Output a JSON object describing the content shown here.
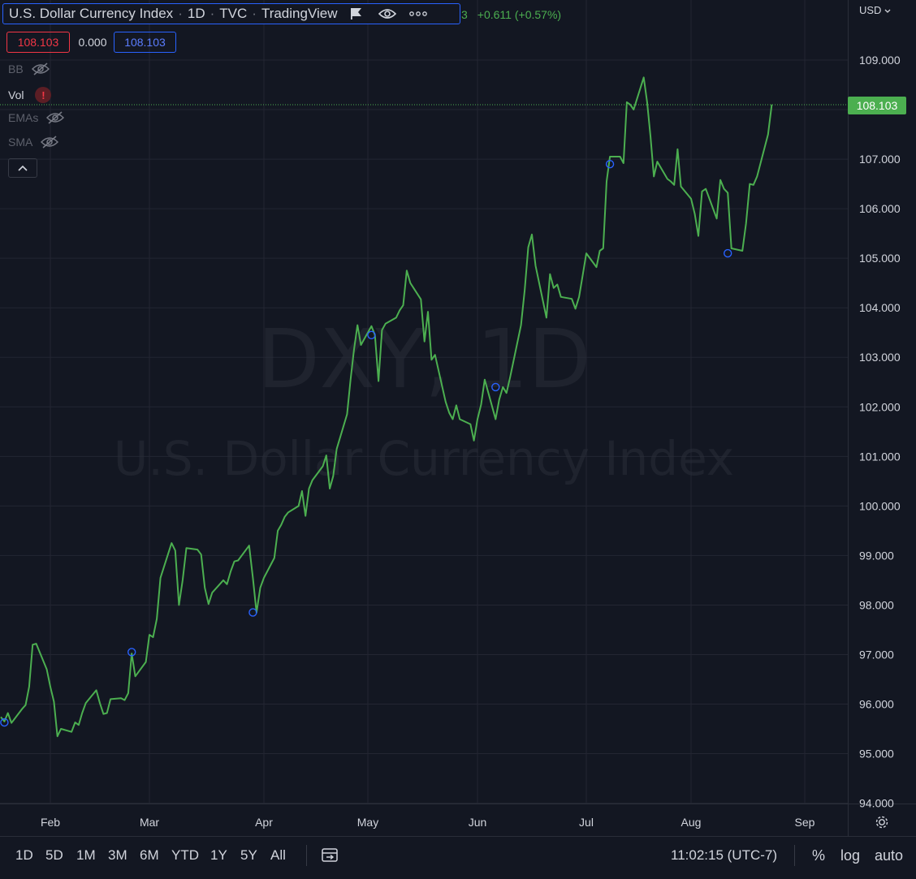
{
  "legend": {
    "symbol_title": "U.S. Dollar Currency Index",
    "interval": "1D",
    "exchange": "TVC",
    "source": "TradingView",
    "dot": "·",
    "last_fragment": "3",
    "change": "+0.611 (+0.57%)",
    "icons": [
      "flag-icon",
      "eye-icon",
      "more-icon"
    ]
  },
  "prices": {
    "bid": "108.103",
    "spread": "0.000",
    "ask": "108.103"
  },
  "indicators": [
    {
      "name": "BB",
      "state": "hidden"
    },
    {
      "name": "Vol",
      "state": "error"
    },
    {
      "name": "EMAs",
      "state": "hidden"
    },
    {
      "name": "SMA",
      "state": "hidden"
    }
  ],
  "warning_glyph": "!",
  "currency_label": "USD",
  "last_price_tag": "108.103",
  "watermark": {
    "symbol": "DXY, 1D",
    "name": "U.S. Dollar Currency Index"
  },
  "time_ranges": [
    "1D",
    "5D",
    "1M",
    "3M",
    "6M",
    "YTD",
    "1Y",
    "5Y",
    "All"
  ],
  "clock": "11:02:15 (UTC-7)",
  "scale_options": {
    "percent": "%",
    "log": "log",
    "auto": "auto"
  },
  "colors": {
    "background": "#131722",
    "line": "#4caf50",
    "marker": "#2962ff",
    "accent": "#2962ff",
    "down": "#f23645"
  },
  "chart_data": {
    "type": "line",
    "title": "U.S. Dollar Currency Index",
    "y_axis_ticks": [
      "109.000",
      "108.000",
      "107.000",
      "106.000",
      "105.000",
      "104.000",
      "103.000",
      "102.000",
      "101.000",
      "100.000",
      "99.000",
      "98.000",
      "97.000",
      "96.000",
      "95.000",
      "94.000"
    ],
    "x_axis_ticks": [
      "Feb",
      "Mar",
      "Apr",
      "May",
      "Jun",
      "Jul",
      "Aug",
      "Sep"
    ],
    "ylim": [
      94,
      109.6
    ],
    "grid": true,
    "last_value": 108.103,
    "series": [
      {
        "values": [
          95.74,
          95.65,
          95.82,
          95.62,
          95.9,
          95.98,
          96.35,
          97.2,
          97.22,
          96.7,
          96.35,
          96.05,
          95.35,
          95.5,
          95.44,
          95.63,
          95.58,
          95.82,
          96.02,
          96.28,
          96.02,
          95.8,
          95.82,
          96.1,
          96.12,
          96.08,
          96.22,
          97.02,
          96.56,
          96.85,
          97.4,
          97.35,
          97.72,
          98.55,
          99.25,
          99.1,
          98.0,
          98.5,
          99.15,
          99.12,
          99.02,
          98.35,
          98.02,
          98.25,
          98.5,
          98.42,
          98.68,
          98.88,
          98.9,
          99.2,
          98.55,
          97.85,
          98.35,
          98.55,
          98.95,
          99.5,
          99.62,
          99.78,
          99.87,
          100.0,
          100.3,
          99.8,
          100.35,
          100.52,
          100.8,
          101.02,
          100.35,
          100.6,
          101.15,
          101.85,
          102.55,
          103.15,
          103.65,
          103.25,
          103.63,
          103.45,
          102.52,
          103.55,
          103.68,
          103.8,
          103.95,
          104.05,
          104.75,
          104.5,
          104.17,
          103.32,
          103.92,
          102.95,
          103.05,
          102.1,
          101.88,
          101.75,
          102.03,
          101.75,
          101.65,
          101.32,
          101.75,
          102.05,
          102.55,
          101.75,
          102.15,
          102.4,
          102.28,
          102.6,
          103.65,
          104.35,
          105.22,
          105.48,
          104.85,
          103.8,
          104.68,
          104.4,
          104.47,
          104.22,
          104.18,
          103.98,
          104.22,
          104.65,
          105.1,
          104.82,
          105.15,
          105.2,
          106.55,
          107.05,
          107.05,
          106.92,
          108.15,
          108.1,
          108.0,
          108.65,
          108.15,
          107.45,
          106.65,
          106.95,
          106.6,
          106.55,
          106.48,
          107.2,
          106.45,
          106.2,
          105.9,
          105.45,
          106.35,
          106.4,
          105.8,
          106.58,
          106.4,
          106.32,
          105.2,
          105.15,
          105.7,
          106.5,
          106.48,
          106.65,
          107.5,
          108.103
        ],
        "start_date": "2022-01-18"
      }
    ],
    "markers": [
      {
        "date": "2022-01-19",
        "value": 95.63
      },
      {
        "date": "2022-02-24",
        "value": 97.05
      },
      {
        "date": "2022-03-29",
        "value": 97.85
      },
      {
        "date": "2022-05-02",
        "value": 103.45
      },
      {
        "date": "2022-06-06",
        "value": 102.4
      },
      {
        "date": "2022-07-08",
        "value": 106.9
      },
      {
        "date": "2022-08-11",
        "value": 105.1
      }
    ]
  }
}
